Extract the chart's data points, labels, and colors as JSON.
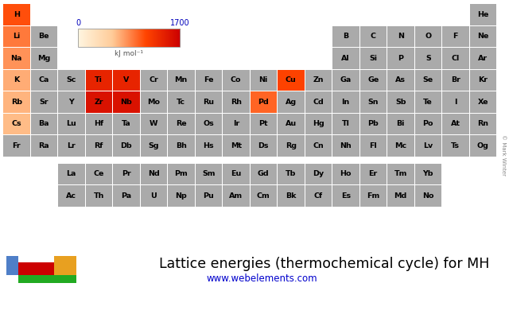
{
  "title": "Lattice energies (thermochemical cycle) for MH",
  "url": "www.webelements.com",
  "colorbar_min": 0,
  "colorbar_max": 1700,
  "colorbar_label": "kJ mol⁻¹",
  "bg_color": "#ffffff",
  "default_cell_color": "#aaaaaa",
  "text_color": "#000000",
  "title_color": "#000000",
  "url_color": "#0000cc",
  "colorbar_label_color": "#555555",
  "colorbar_tick_color": "#0000bb",
  "legend_colors": [
    "#4f7fc8",
    "#cc0000",
    "#e8a020",
    "#22aa22"
  ],
  "watermark": "© Mark Winter",
  "elements": {
    "H": {
      "row": 0,
      "col": 0,
      "value": 1090
    },
    "He": {
      "row": 0,
      "col": 17,
      "value": null
    },
    "Li": {
      "row": 1,
      "col": 0,
      "value": 916
    },
    "Be": {
      "row": 1,
      "col": 1,
      "value": null
    },
    "B": {
      "row": 1,
      "col": 12,
      "value": null
    },
    "C": {
      "row": 1,
      "col": 13,
      "value": null
    },
    "N": {
      "row": 1,
      "col": 14,
      "value": null
    },
    "O": {
      "row": 1,
      "col": 15,
      "value": null
    },
    "F": {
      "row": 1,
      "col": 16,
      "value": null
    },
    "Ne": {
      "row": 1,
      "col": 17,
      "value": null
    },
    "Na": {
      "row": 2,
      "col": 0,
      "value": 808
    },
    "Mg": {
      "row": 2,
      "col": 1,
      "value": null
    },
    "Al": {
      "row": 2,
      "col": 12,
      "value": null
    },
    "Si": {
      "row": 2,
      "col": 13,
      "value": null
    },
    "P": {
      "row": 2,
      "col": 14,
      "value": null
    },
    "S": {
      "row": 2,
      "col": 15,
      "value": null
    },
    "Cl": {
      "row": 2,
      "col": 16,
      "value": null
    },
    "Ar": {
      "row": 2,
      "col": 17,
      "value": null
    },
    "K": {
      "row": 3,
      "col": 0,
      "value": 699
    },
    "Ca": {
      "row": 3,
      "col": 1,
      "value": null
    },
    "Sc": {
      "row": 3,
      "col": 2,
      "value": null
    },
    "Ti": {
      "row": 3,
      "col": 3,
      "value": 1400
    },
    "V": {
      "row": 3,
      "col": 4,
      "value": 1400
    },
    "Cr": {
      "row": 3,
      "col": 5,
      "value": null
    },
    "Mn": {
      "row": 3,
      "col": 6,
      "value": null
    },
    "Fe": {
      "row": 3,
      "col": 7,
      "value": null
    },
    "Co": {
      "row": 3,
      "col": 8,
      "value": null
    },
    "Ni": {
      "row": 3,
      "col": 9,
      "value": null
    },
    "Cu": {
      "row": 3,
      "col": 10,
      "value": 1150
    },
    "Zn": {
      "row": 3,
      "col": 11,
      "value": null
    },
    "Ga": {
      "row": 3,
      "col": 12,
      "value": null
    },
    "Ge": {
      "row": 3,
      "col": 13,
      "value": null
    },
    "As": {
      "row": 3,
      "col": 14,
      "value": null
    },
    "Se": {
      "row": 3,
      "col": 15,
      "value": null
    },
    "Br": {
      "row": 3,
      "col": 16,
      "value": null
    },
    "Kr": {
      "row": 3,
      "col": 17,
      "value": null
    },
    "Rb": {
      "row": 4,
      "col": 0,
      "value": 670
    },
    "Sr": {
      "row": 4,
      "col": 1,
      "value": null
    },
    "Y": {
      "row": 4,
      "col": 2,
      "value": null
    },
    "Zr": {
      "row": 4,
      "col": 3,
      "value": 1550
    },
    "Nb": {
      "row": 4,
      "col": 4,
      "value": 1550
    },
    "Mo": {
      "row": 4,
      "col": 5,
      "value": null
    },
    "Tc": {
      "row": 4,
      "col": 6,
      "value": null
    },
    "Ru": {
      "row": 4,
      "col": 7,
      "value": null
    },
    "Rh": {
      "row": 4,
      "col": 8,
      "value": null
    },
    "Pd": {
      "row": 4,
      "col": 9,
      "value": 1000
    },
    "Ag": {
      "row": 4,
      "col": 10,
      "value": null
    },
    "Cd": {
      "row": 4,
      "col": 11,
      "value": null
    },
    "In": {
      "row": 4,
      "col": 12,
      "value": null
    },
    "Sn": {
      "row": 4,
      "col": 13,
      "value": null
    },
    "Sb": {
      "row": 4,
      "col": 14,
      "value": null
    },
    "Te": {
      "row": 4,
      "col": 15,
      "value": null
    },
    "I": {
      "row": 4,
      "col": 16,
      "value": null
    },
    "Xe": {
      "row": 4,
      "col": 17,
      "value": null
    },
    "Cs": {
      "row": 5,
      "col": 0,
      "value": 636
    },
    "Ba": {
      "row": 5,
      "col": 1,
      "value": null
    },
    "Lu": {
      "row": 5,
      "col": 2,
      "value": null
    },
    "Hf": {
      "row": 5,
      "col": 3,
      "value": null
    },
    "Ta": {
      "row": 5,
      "col": 4,
      "value": null
    },
    "W": {
      "row": 5,
      "col": 5,
      "value": null
    },
    "Re": {
      "row": 5,
      "col": 6,
      "value": null
    },
    "Os": {
      "row": 5,
      "col": 7,
      "value": null
    },
    "Ir": {
      "row": 5,
      "col": 8,
      "value": null
    },
    "Pt": {
      "row": 5,
      "col": 9,
      "value": null
    },
    "Au": {
      "row": 5,
      "col": 10,
      "value": null
    },
    "Hg": {
      "row": 5,
      "col": 11,
      "value": null
    },
    "Tl": {
      "row": 5,
      "col": 12,
      "value": null
    },
    "Pb": {
      "row": 5,
      "col": 13,
      "value": null
    },
    "Bi": {
      "row": 5,
      "col": 14,
      "value": null
    },
    "Po": {
      "row": 5,
      "col": 15,
      "value": null
    },
    "At": {
      "row": 5,
      "col": 16,
      "value": null
    },
    "Rn": {
      "row": 5,
      "col": 17,
      "value": null
    },
    "Fr": {
      "row": 6,
      "col": 0,
      "value": null
    },
    "Ra": {
      "row": 6,
      "col": 1,
      "value": null
    },
    "Lr": {
      "row": 6,
      "col": 2,
      "value": null
    },
    "Rf": {
      "row": 6,
      "col": 3,
      "value": null
    },
    "Db": {
      "row": 6,
      "col": 4,
      "value": null
    },
    "Sg": {
      "row": 6,
      "col": 5,
      "value": null
    },
    "Bh": {
      "row": 6,
      "col": 6,
      "value": null
    },
    "Hs": {
      "row": 6,
      "col": 7,
      "value": null
    },
    "Mt": {
      "row": 6,
      "col": 8,
      "value": null
    },
    "Ds": {
      "row": 6,
      "col": 9,
      "value": null
    },
    "Rg": {
      "row": 6,
      "col": 10,
      "value": null
    },
    "Cn": {
      "row": 6,
      "col": 11,
      "value": null
    },
    "Nh": {
      "row": 6,
      "col": 12,
      "value": null
    },
    "Fl": {
      "row": 6,
      "col": 13,
      "value": null
    },
    "Mc": {
      "row": 6,
      "col": 14,
      "value": null
    },
    "Lv": {
      "row": 6,
      "col": 15,
      "value": null
    },
    "Ts": {
      "row": 6,
      "col": 16,
      "value": null
    },
    "Og": {
      "row": 6,
      "col": 17,
      "value": null
    },
    "La": {
      "row": 8,
      "col": 2,
      "value": null
    },
    "Ce": {
      "row": 8,
      "col": 3,
      "value": null
    },
    "Pr": {
      "row": 8,
      "col": 4,
      "value": null
    },
    "Nd": {
      "row": 8,
      "col": 5,
      "value": null
    },
    "Pm": {
      "row": 8,
      "col": 6,
      "value": null
    },
    "Sm": {
      "row": 8,
      "col": 7,
      "value": null
    },
    "Eu": {
      "row": 8,
      "col": 8,
      "value": null
    },
    "Gd": {
      "row": 8,
      "col": 9,
      "value": null
    },
    "Tb": {
      "row": 8,
      "col": 10,
      "value": null
    },
    "Dy": {
      "row": 8,
      "col": 11,
      "value": null
    },
    "Ho": {
      "row": 8,
      "col": 12,
      "value": null
    },
    "Er": {
      "row": 8,
      "col": 13,
      "value": null
    },
    "Tm": {
      "row": 8,
      "col": 14,
      "value": null
    },
    "Yb": {
      "row": 8,
      "col": 15,
      "value": null
    },
    "Ac": {
      "row": 9,
      "col": 2,
      "value": null
    },
    "Th": {
      "row": 9,
      "col": 3,
      "value": null
    },
    "Pa": {
      "row": 9,
      "col": 4,
      "value": null
    },
    "U": {
      "row": 9,
      "col": 5,
      "value": null
    },
    "Np": {
      "row": 9,
      "col": 6,
      "value": null
    },
    "Pu": {
      "row": 9,
      "col": 7,
      "value": null
    },
    "Am": {
      "row": 9,
      "col": 8,
      "value": null
    },
    "Cm": {
      "row": 9,
      "col": 9,
      "value": null
    },
    "Bk": {
      "row": 9,
      "col": 10,
      "value": null
    },
    "Cf": {
      "row": 9,
      "col": 11,
      "value": null
    },
    "Es": {
      "row": 9,
      "col": 12,
      "value": null
    },
    "Fm": {
      "row": 9,
      "col": 13,
      "value": null
    },
    "Md": {
      "row": 9,
      "col": 14,
      "value": null
    },
    "No": {
      "row": 9,
      "col": 15,
      "value": null
    }
  }
}
